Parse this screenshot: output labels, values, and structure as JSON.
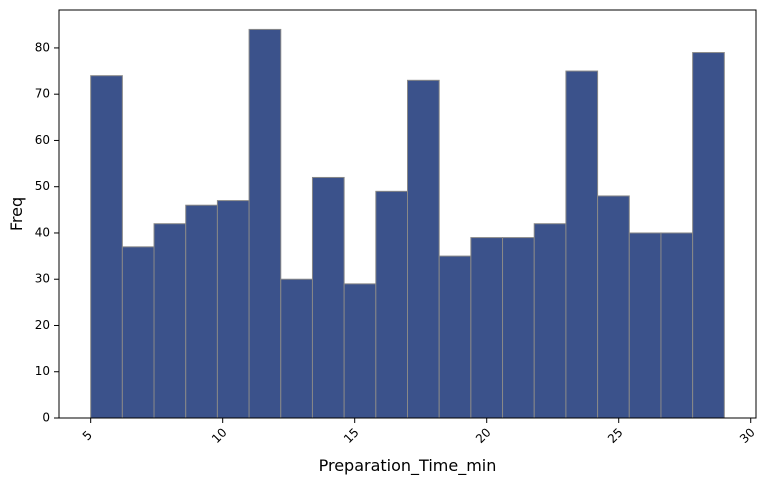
{
  "chart_data": {
    "type": "bar",
    "subtype": "histogram",
    "title": "",
    "xlabel": "Preparation_Time_min",
    "ylabel": "Freq",
    "bin_edges": [
      5.0,
      6.2,
      7.4,
      8.6,
      9.8,
      11.0,
      12.2,
      13.4,
      14.6,
      15.8,
      17.0,
      18.2,
      19.4,
      20.6,
      21.8,
      23.0,
      24.2,
      25.4,
      26.6,
      27.8,
      29.0
    ],
    "values": [
      74,
      37,
      42,
      46,
      47,
      84,
      30,
      52,
      29,
      49,
      73,
      35,
      39,
      39,
      42,
      75,
      48,
      40,
      40,
      79
    ],
    "xlim": [
      3.8,
      30.2
    ],
    "ylim": [
      0,
      88.2
    ],
    "x_ticks": [
      5,
      10,
      15,
      20,
      25,
      30
    ],
    "y_ticks": [
      0,
      10,
      20,
      30,
      40,
      50,
      60,
      70,
      80
    ],
    "x_tick_rotation": "45 degrees",
    "bar_color": "#3b528b",
    "edge_color": "#888888",
    "grid": false,
    "legend": "none"
  }
}
